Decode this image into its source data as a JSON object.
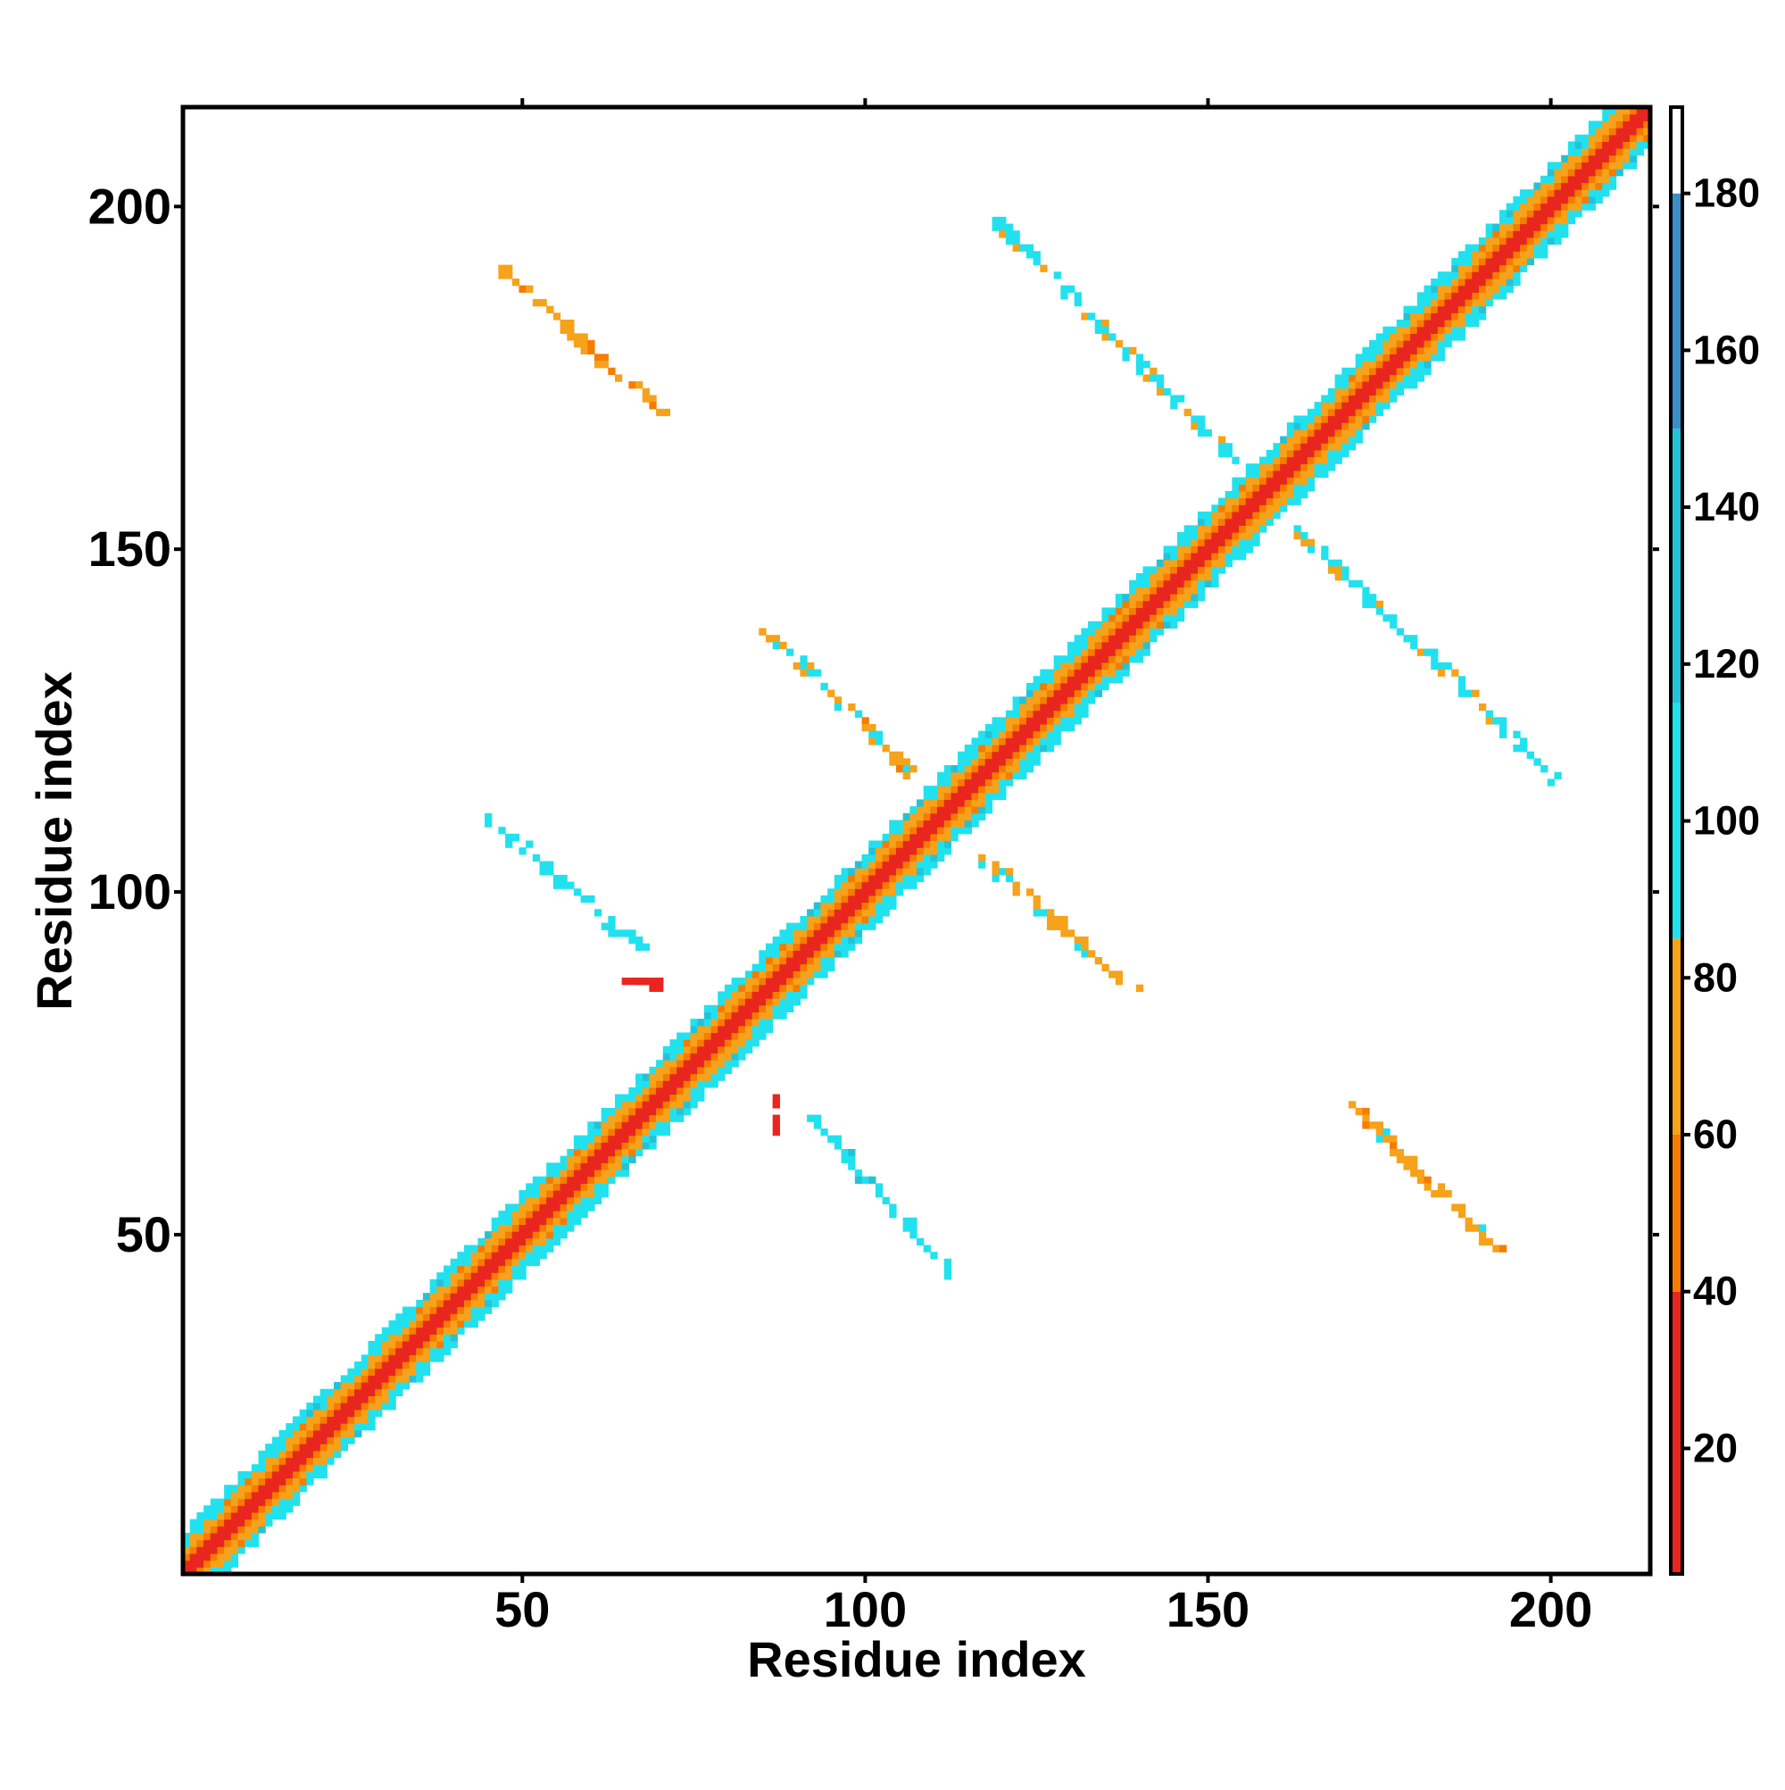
{
  "chart_data": {
    "type": "heatmap",
    "title": "",
    "xlabel": "Residue index",
    "ylabel": "Residue index",
    "xlim": [
      1,
      214
    ],
    "ylim": [
      1,
      214
    ],
    "x_ticks": [
      50,
      100,
      150,
      200
    ],
    "y_ticks": [
      50,
      100,
      150,
      200
    ],
    "grid": false,
    "colorbar": {
      "placement": "right",
      "range": [
        4,
        191
      ],
      "ticks": [
        20,
        40,
        60,
        80,
        100,
        120,
        140,
        160,
        180
      ],
      "bands": [
        {
          "from": 4,
          "to": 40,
          "color": "#e8261f"
        },
        {
          "from": 40,
          "to": 60,
          "color": "#f57c00"
        },
        {
          "from": 60,
          "to": 85,
          "color": "#f6a21a"
        },
        {
          "from": 85,
          "to": 115,
          "color": "#22e1ee"
        },
        {
          "from": 115,
          "to": 150,
          "color": "#24c2d8"
        },
        {
          "from": 150,
          "to": 180,
          "color": "#3b8ec8"
        },
        {
          "from": 180,
          "to": 191,
          "color": "#ffffff"
        }
      ]
    },
    "diagonal_band": {
      "from": 1,
      "to": 214,
      "half_width": 6
    },
    "contact_features": [
      {
        "name": "antiparallel sheet",
        "x": [
          47,
          70
        ],
        "y": [
          191,
          170
        ],
        "value": 70
      },
      {
        "name": "antiparallel sheet",
        "x": [
          118,
          154
        ],
        "y": [
          199,
          163
        ],
        "value": 95
      },
      {
        "name": "antiparallel sheet",
        "x": [
          163,
          200
        ],
        "y": [
          153,
          117
        ],
        "value": 95
      },
      {
        "name": "antiparallel sheet",
        "x": [
          85,
          106
        ],
        "y": [
          139,
          118
        ],
        "value": 75
      },
      {
        "name": "antiparallel sheet",
        "x": [
          45,
          67
        ],
        "y": [
          111,
          92
        ],
        "value": 100
      },
      {
        "name": "antiparallel sheet",
        "x": [
          116,
          139
        ],
        "y": [
          106,
          86
        ],
        "value": 75
      },
      {
        "name": "antiparallel sheet",
        "x": [
          92,
          112
        ],
        "y": [
          67,
          45
        ],
        "value": 100
      },
      {
        "name": "antiparallel sheet",
        "x": [
          171,
          192
        ],
        "y": [
          69,
          48
        ],
        "value": 70
      },
      {
        "name": "isolated contacts",
        "x": [
          65,
          70
        ],
        "y": [
          87,
          87
        ],
        "value": 25
      },
      {
        "name": "isolated contacts",
        "x": [
          87,
          87
        ],
        "y": [
          70,
          65
        ],
        "value": 25
      }
    ]
  }
}
